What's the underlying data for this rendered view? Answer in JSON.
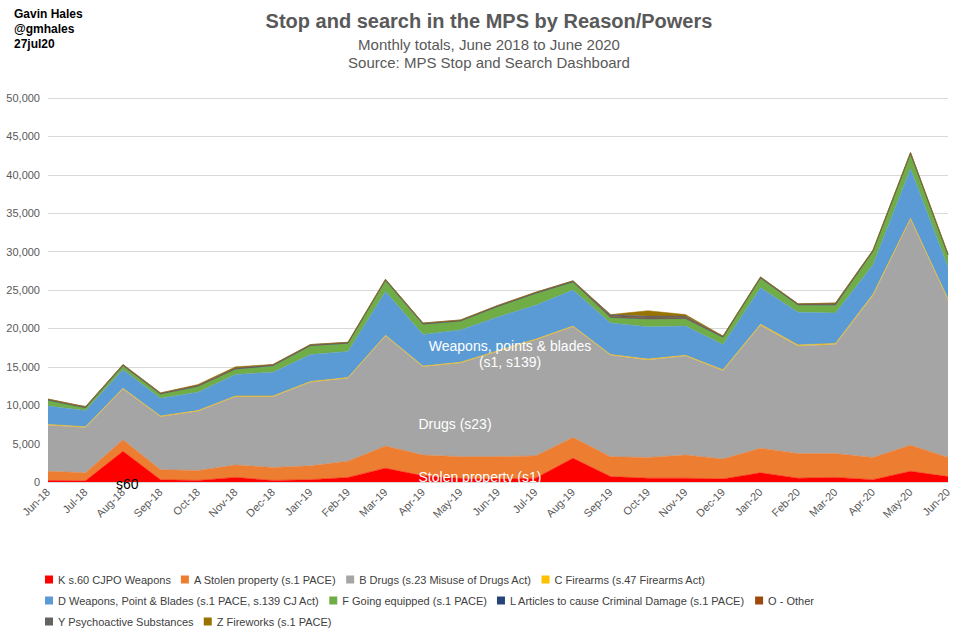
{
  "chart_data": {
    "type": "area",
    "title": "Stop and search in the MPS by Reason/Powers",
    "subtitle": [
      "Monthly totals, June 2018 to June 2020",
      "Source: MPS Stop and Search Dashboard"
    ],
    "author": [
      "Gavin Hales",
      "@gmhales",
      "27jul20"
    ],
    "annotations": [
      "s60",
      "Stolen property (s1)",
      "Drugs (s23)",
      "Weapons, points & blades\n(s1, s139)"
    ],
    "categories": [
      "Jun-18",
      "Jul-18",
      "Aug-18",
      "Sep-18",
      "Oct-18",
      "Nov-18",
      "Dec-18",
      "Jan-19",
      "Feb-19",
      "Mar-19",
      "Apr-19",
      "May-19",
      "Jun-19",
      "Jul-19",
      "Aug-19",
      "Sep-19",
      "Oct-19",
      "Nov-19",
      "Dec-19",
      "Jan-20",
      "Feb-20",
      "Mar-20",
      "Apr-20",
      "May-20",
      "Jun-20"
    ],
    "series": [
      {
        "name": "K s.60 CJPO Weapons",
        "color": "#ff0000",
        "values": [
          200,
          150,
          4000,
          300,
          200,
          600,
          200,
          300,
          600,
          1800,
          800,
          500,
          400,
          500,
          3100,
          700,
          500,
          500,
          400,
          1200,
          500,
          600,
          300,
          1400,
          700
        ]
      },
      {
        "name": "A Stolen property (s.1 PACE)",
        "color": "#ed7d31",
        "values": [
          1200,
          1050,
          1500,
          1300,
          1300,
          1600,
          1700,
          1800,
          2100,
          2900,
          2700,
          2800,
          2900,
          2900,
          2700,
          2600,
          2700,
          3000,
          2600,
          3200,
          3200,
          3100,
          2900,
          3400,
          2500
        ]
      },
      {
        "name": "B Drugs (s.23 Misuse of Drugs Act)",
        "color": "#a5a5a5",
        "values": [
          6000,
          5900,
          6600,
          6900,
          7700,
          8900,
          9200,
          10900,
          10800,
          14300,
          11500,
          12200,
          13700,
          15100,
          14400,
          13200,
          12700,
          12900,
          11500,
          16000,
          14000,
          14200,
          21100,
          29400,
          20500
        ]
      },
      {
        "name": "C Firearms (s.47 Firearms Act)",
        "color": "#ffc000",
        "values": [
          100,
          100,
          100,
          100,
          100,
          100,
          100,
          100,
          100,
          100,
          100,
          100,
          100,
          100,
          100,
          100,
          100,
          100,
          100,
          150,
          150,
          150,
          150,
          150,
          150
        ]
      },
      {
        "name": "D Weapons, Point & Blades (s.1 PACE, s.139 CJ Act)",
        "color": "#5b9bd5",
        "values": [
          2400,
          2100,
          2400,
          2300,
          2400,
          2800,
          3100,
          3500,
          3400,
          5700,
          4100,
          4200,
          4400,
          4400,
          4700,
          4100,
          4200,
          3800,
          3300,
          4750,
          4250,
          3950,
          3850,
          6450,
          4150
        ]
      },
      {
        "name": "F Going equipped (s.1 PACE)",
        "color": "#70ad47",
        "values": [
          720,
          320,
          520,
          520,
          720,
          670,
          820,
          1120,
          1020,
          1420,
          1320,
          1120,
          1320,
          1520,
          1020,
          700,
          1000,
          950,
          920,
          1220,
          920,
          1020,
          1720,
          1920,
          1520
        ]
      },
      {
        "name": "L Articles to cause Criminal Damage (s.1 PACE)",
        "color": "#264478",
        "values": [
          50,
          50,
          50,
          50,
          50,
          50,
          50,
          50,
          50,
          50,
          50,
          50,
          50,
          50,
          50,
          50,
          50,
          50,
          50,
          50,
          50,
          50,
          50,
          50,
          50
        ]
      },
      {
        "name": "O - Other",
        "color": "#9e480e",
        "values": [
          100,
          100,
          100,
          100,
          100,
          100,
          100,
          100,
          100,
          100,
          100,
          100,
          100,
          100,
          100,
          100,
          100,
          100,
          100,
          100,
          100,
          200,
          100,
          100,
          100
        ]
      },
      {
        "name": "Y Psychoactive Substances",
        "color": "#636363",
        "values": [
          30,
          30,
          30,
          30,
          30,
          30,
          30,
          30,
          30,
          30,
          30,
          30,
          30,
          30,
          30,
          250,
          250,
          200,
          30,
          30,
          30,
          30,
          30,
          30,
          30
        ]
      },
      {
        "name": "Z Fireworks (s.1 PACE)",
        "color": "#997300",
        "values": [
          0,
          0,
          0,
          0,
          100,
          150,
          0,
          0,
          0,
          0,
          0,
          0,
          0,
          0,
          0,
          0,
          700,
          200,
          0,
          0,
          0,
          0,
          0,
          0,
          0
        ]
      }
    ],
    "ylim": [
      0,
      50000
    ],
    "yticks": [
      0,
      5000,
      10000,
      15000,
      20000,
      25000,
      30000,
      35000,
      40000,
      45000,
      50000
    ],
    "grid": true,
    "stacked": true,
    "legend": "bottom"
  }
}
